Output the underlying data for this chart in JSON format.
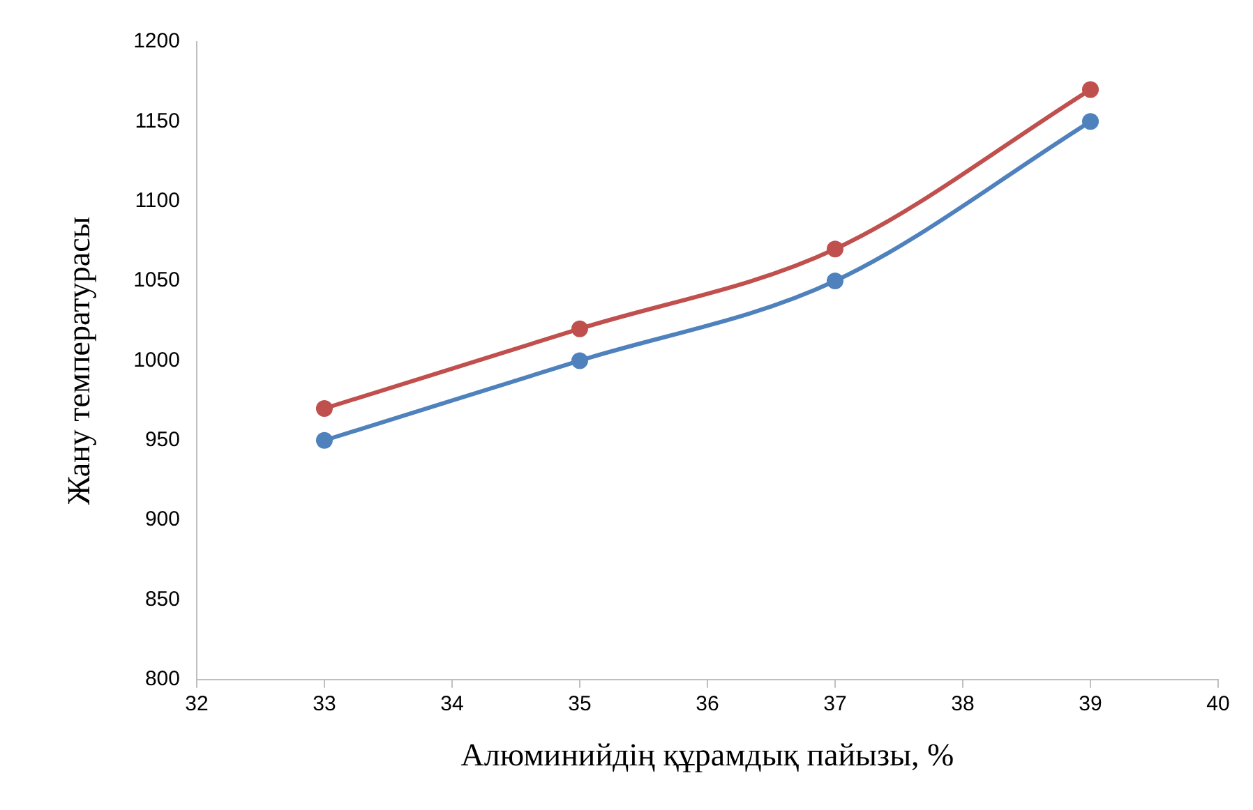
{
  "chart_data": {
    "type": "line",
    "xlabel": "Алюминийдің құрамдық пайызы, %",
    "ylabel": "Жану температурасы",
    "x": [
      33,
      35,
      37,
      39
    ],
    "series": [
      {
        "color": "#4f81bd",
        "values": [
          950,
          1000,
          1050,
          1150
        ]
      },
      {
        "color": "#c0504d",
        "values": [
          970,
          1020,
          1070,
          1170
        ]
      }
    ],
    "xlim": [
      32,
      40
    ],
    "xticks": [
      32,
      33,
      34,
      35,
      36,
      37,
      38,
      39,
      40
    ],
    "ylim": [
      800,
      1200
    ],
    "yticks": [
      800,
      850,
      900,
      950,
      1000,
      1050,
      1100,
      1150,
      1200
    ],
    "grid": false,
    "legend": false,
    "marker": "circle",
    "line_style": "solid"
  }
}
